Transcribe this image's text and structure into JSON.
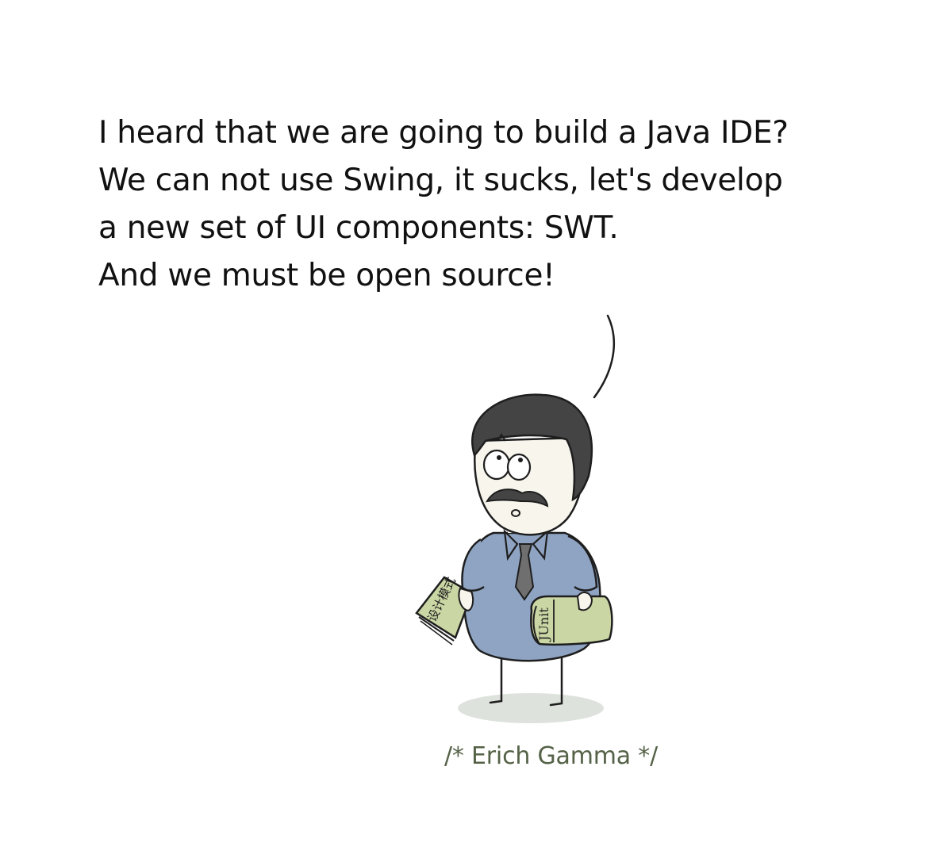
{
  "speech": {
    "lines": [
      "I heard that we are going to build a Java IDE?",
      "We can not use Swing, it sucks, let's develop",
      "a new set of UI components: SWT.",
      "And we must be open source!"
    ]
  },
  "illustration": {
    "left_book_title": "设计模式",
    "right_book_title": "JUnit"
  },
  "caption": "/* Erich Gamma */",
  "colors": {
    "text": "#111111",
    "caption": "#556247",
    "shirt": "#8fa4c3",
    "hair": "#444444",
    "skin": "#f7f5ec",
    "book": "#cad6a4",
    "shadow": "#dde3dc"
  }
}
